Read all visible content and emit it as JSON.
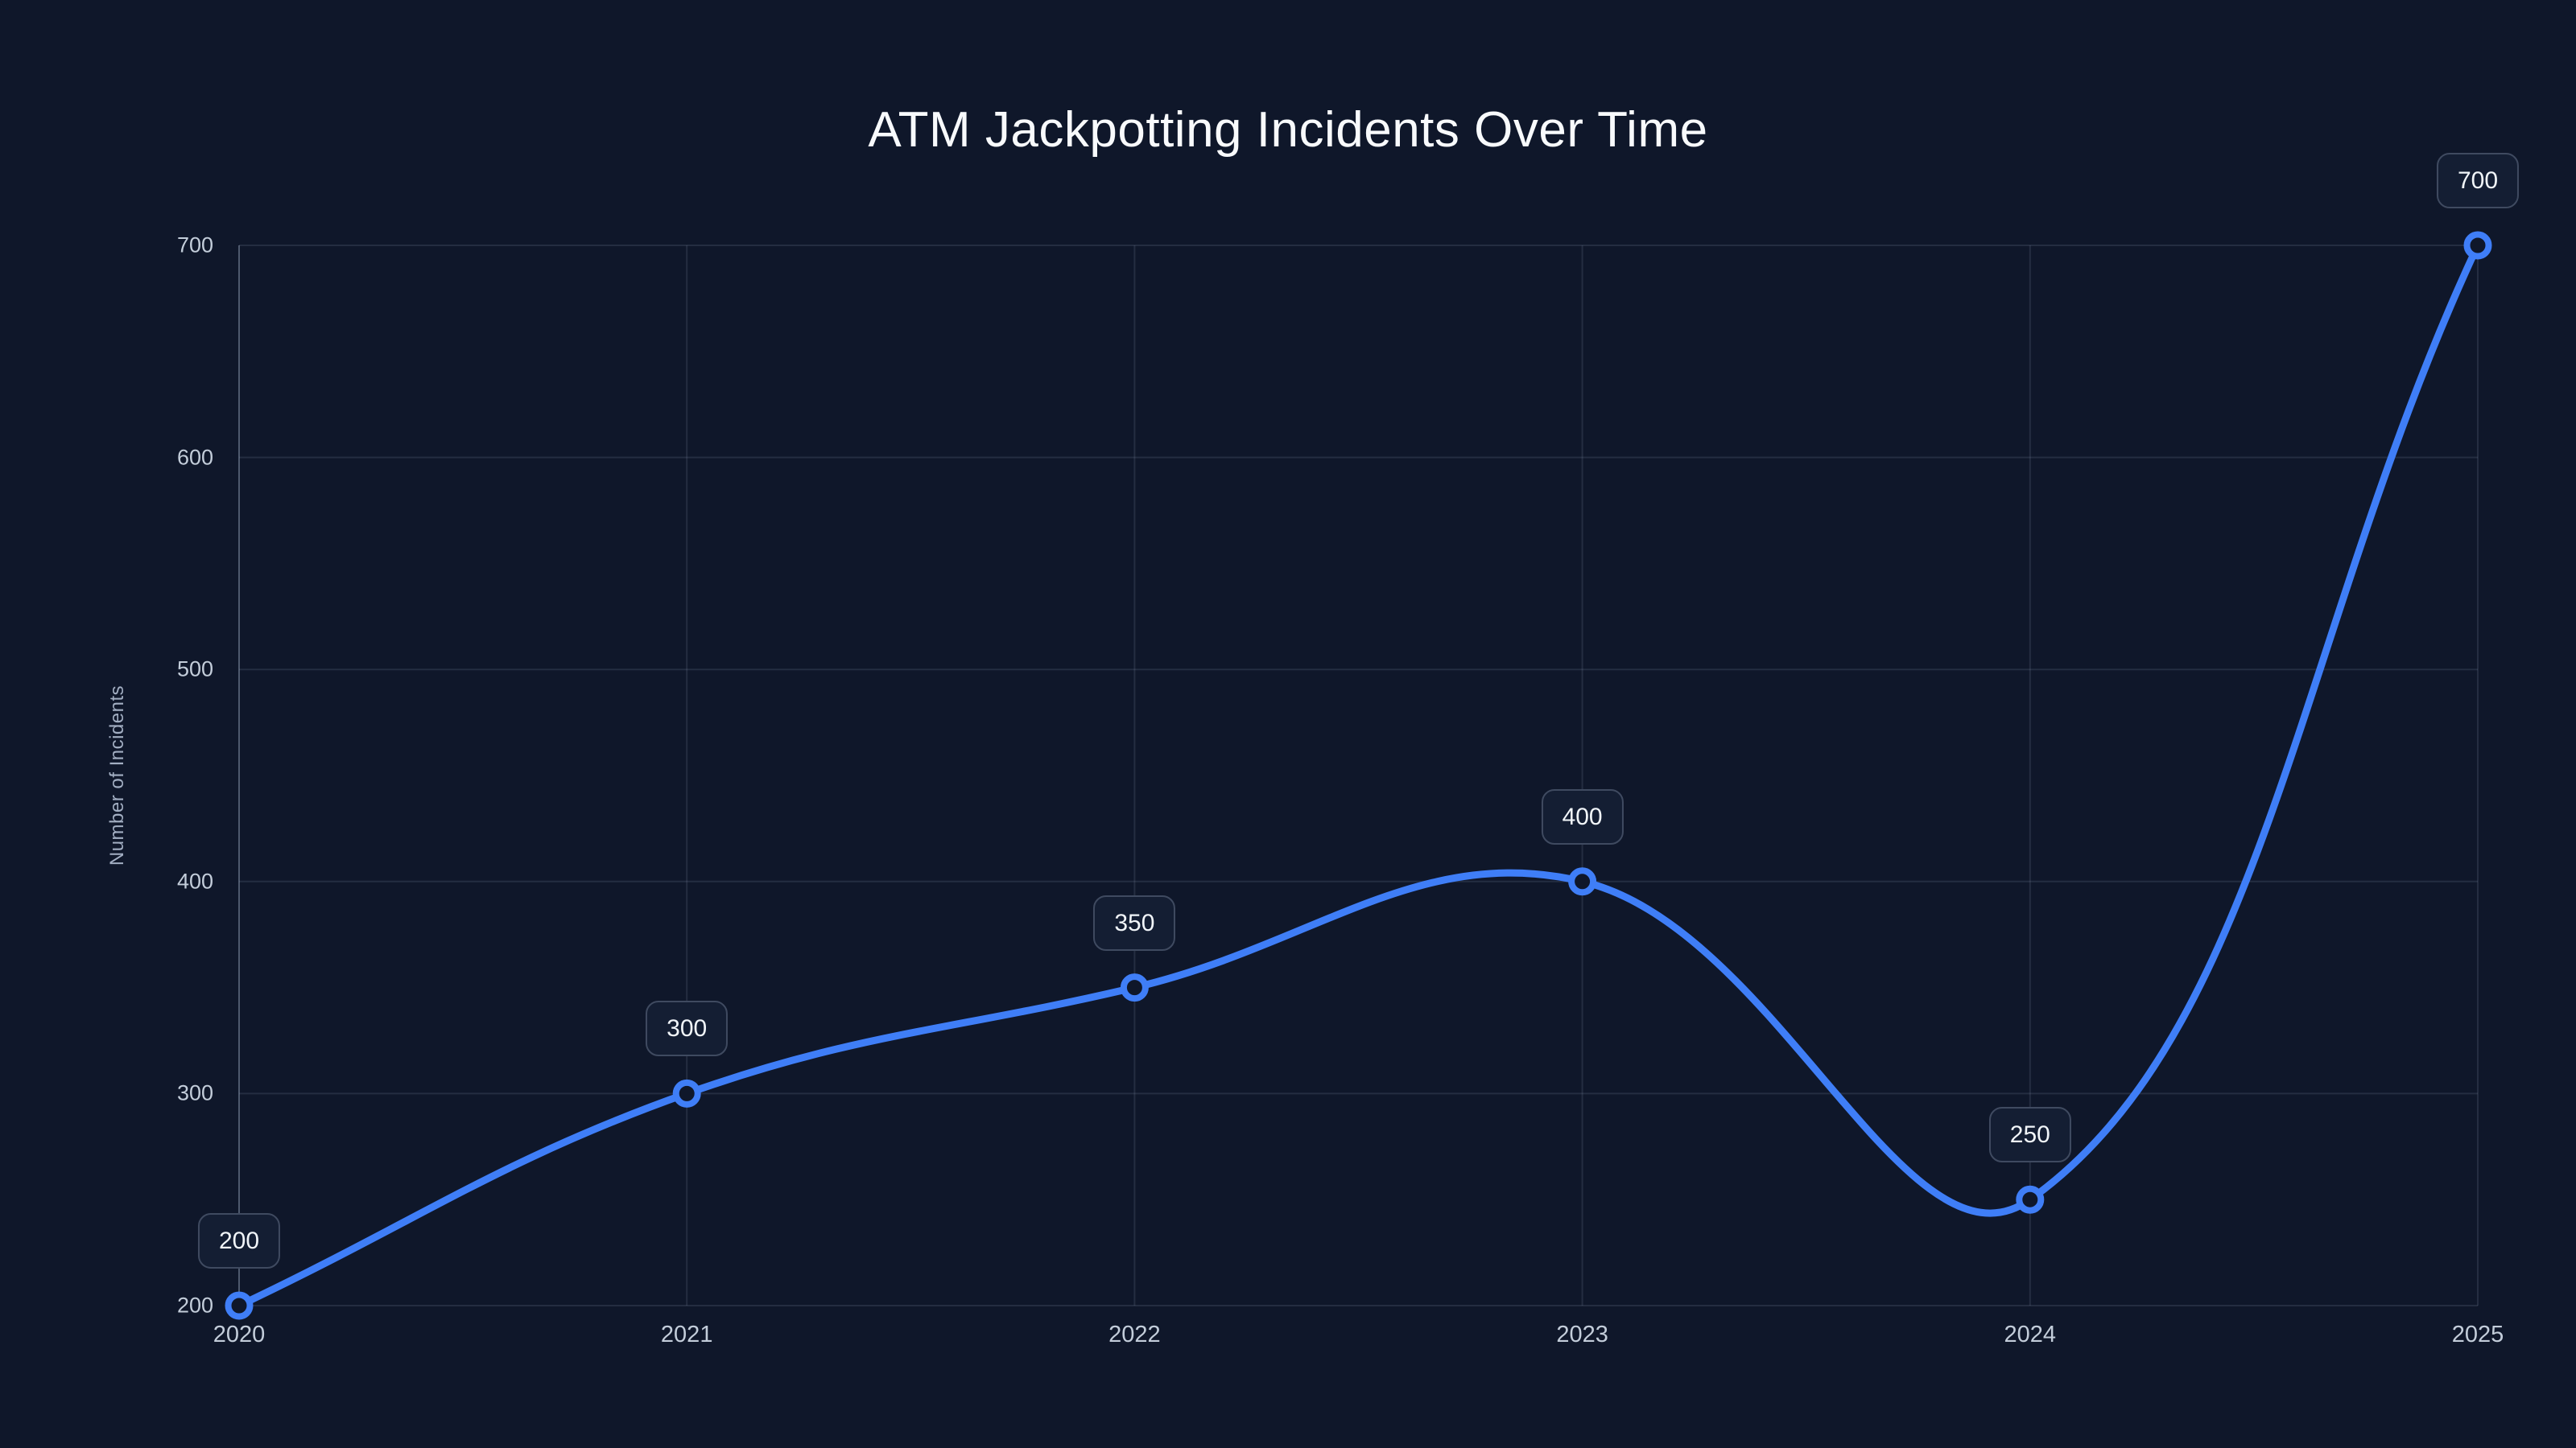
{
  "chart": {
    "title": "ATM Jackpotting Incidents Over Time",
    "y_axis_title": "Number of Incidents"
  },
  "chart_data": {
    "type": "line",
    "title": "ATM Jackpotting Incidents Over Time",
    "xlabel": "",
    "ylabel": "Number of Incidents",
    "categories": [
      "2020",
      "2021",
      "2022",
      "2023",
      "2024",
      "2025"
    ],
    "values": [
      200,
      300,
      350,
      400,
      250,
      700
    ],
    "point_labels": [
      "200",
      "300",
      "350",
      "400",
      "250",
      "700"
    ],
    "ylim": [
      200,
      700
    ],
    "yticks": [
      200,
      300,
      400,
      500,
      600,
      700
    ],
    "grid": true,
    "legend": false,
    "curve_tension": 0.4
  },
  "colors": {
    "background": "#0f172a",
    "title_text": "#f8fafc",
    "tick_text": "#c3cdda",
    "axis_title_text": "#a2aec2",
    "gridline": "rgba(148,163,184,0.16)",
    "axis_line": "rgba(148,163,184,0.38)",
    "label_box_bg": "#141e33",
    "label_box_border": "#3f4a60",
    "label_box_text": "#f1f5f9",
    "line": "#3f7ef7",
    "marker_fill": "#0f172a"
  }
}
